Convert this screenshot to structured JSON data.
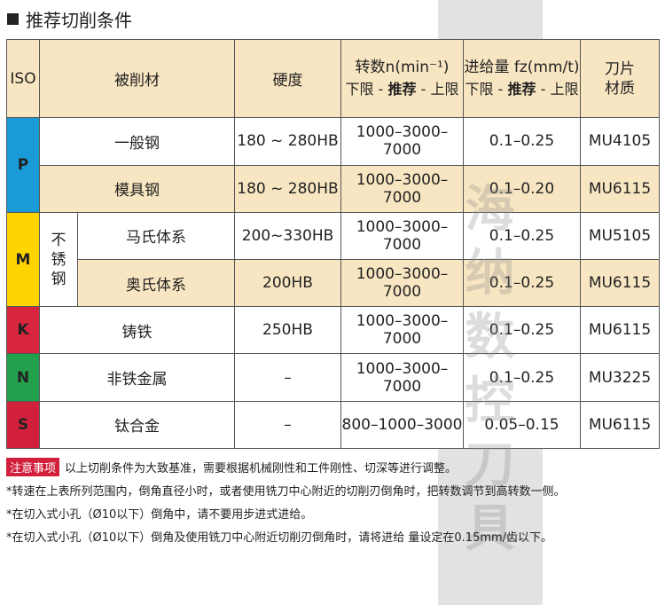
{
  "title": "推荐切削条件",
  "header": {
    "iso": "ISO",
    "material": "被削材",
    "hardness": "硬度",
    "speed_label": "转数n(min⁻¹)",
    "speed_sub_low": "下限 - ",
    "speed_sub_rec": "推荐",
    "speed_sub_high": " - 上限",
    "feed_label": "进给量 fz(mm/t)",
    "feed_sub_low": "下限 - ",
    "feed_sub_rec": "推荐",
    "feed_sub_high": " - 上限",
    "tool_line1": "刀片",
    "tool_line2": "材质"
  },
  "stainless_label": "不锈钢",
  "iso_groups": {
    "p": "P",
    "m": "M",
    "k": "K",
    "n": "N",
    "s": "S"
  },
  "rows": [
    {
      "material": "一般钢",
      "hardness": "180 ~ 280HB",
      "speed": "1000–3000–7000",
      "feed": "0.1–0.25",
      "grade": "MU4105"
    },
    {
      "material": "模具钢",
      "hardness": "180 ~ 280HB",
      "speed": "1000–3000–7000",
      "feed": "0.1–0.20",
      "grade": "MU6115"
    },
    {
      "material": "马氏体系",
      "hardness": "200~330HB",
      "speed": "1000–3000–7000",
      "feed": "0.1–0.25",
      "grade": "MU5105"
    },
    {
      "material": "奥氏体系",
      "hardness": "200HB",
      "speed": "1000–3000–7000",
      "feed": "0.1–0.25",
      "grade": "MU6115"
    },
    {
      "material": "铸铁",
      "hardness": "250HB",
      "speed": "1000–3000–7000",
      "feed": "0.1–0.25",
      "grade": "MU6115"
    },
    {
      "material": "非铁金属",
      "hardness": "–",
      "speed": "1000–3000–7000",
      "feed": "0.1–0.25",
      "grade": "MU3225"
    },
    {
      "material": "钛合金",
      "hardness": "–",
      "speed": "800–1000–3000",
      "feed": "0.05–0.15",
      "grade": "MU6115"
    }
  ],
  "notes": {
    "badge": "注意事项",
    "main": "以上切削条件为大致基准，需要根据机械刚性和工件刚性、切深等进行调整。",
    "items": [
      "*转速在上表所列范围内，倒角直径小时，或者使用铣刀中心附近的切削刃倒角时，把转数调节到高转数一侧。",
      "*在切入式小孔（Ø10以下）倒角中，请不要用步进式进给。",
      "*在切入式小孔（Ø10以下）倒角及使用铣刀中心附近切削刃倒角时，请将进给 量设定在0.15mm/齿以下。"
    ]
  },
  "watermark": {
    "chars": [
      "海",
      "纳",
      "数",
      "控",
      "刀",
      "具"
    ]
  },
  "colors": {
    "cream": "#f8e6c2",
    "p": "#1a9ad6",
    "m": "#ffd400",
    "k": "#d7263d",
    "n": "#22a04b",
    "s": "#d21f3c",
    "badge": "#d21f3c"
  }
}
